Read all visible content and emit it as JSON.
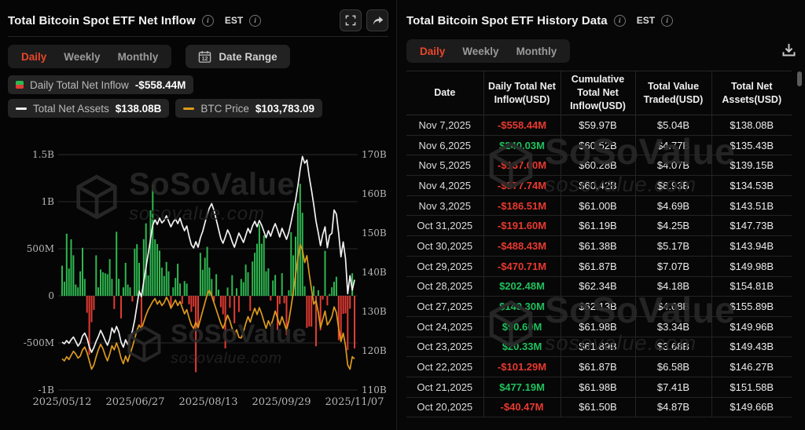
{
  "colors": {
    "green": "#2eb850",
    "red": "#e23b33",
    "assets_line": "#f2f2f2",
    "btc_line": "#dd9a1c",
    "accent": "#e8472b"
  },
  "left_panel": {
    "title": "Total Bitcoin Spot ETF Net Inflow",
    "est_label": "EST",
    "tabs": [
      "Daily",
      "Weekly",
      "Monthly"
    ],
    "active_tab": "Daily",
    "date_range_label": "Date Range",
    "calendar_icon_text": "12",
    "legend": [
      {
        "label": "Daily Total Net Inflow",
        "value": "-$558.44M"
      },
      {
        "label": "Total Net Assets",
        "value": "$138.08B"
      },
      {
        "label": "BTC Price",
        "value": "$103,783.09"
      }
    ],
    "watermark": {
      "brand": "SoSoValue",
      "domain": "sosovalue.com"
    }
  },
  "right_panel": {
    "title": "Total Bitcoin Spot ETF History Data",
    "est_label": "EST",
    "tabs": [
      "Daily",
      "Weekly",
      "Monthly"
    ],
    "active_tab": "Daily",
    "watermark": {
      "brand": "SoSoValue",
      "domain": "sosovalue.com"
    },
    "table": {
      "columns": [
        "Date",
        "Daily Total Net Inflow(USD)",
        "Cumulative Total Net Inflow(USD)",
        "Total Value Traded(USD)",
        "Total Net Assets(USD)"
      ],
      "rows": [
        {
          "date": "Nov 7,2025",
          "inflow": "-$558.44M",
          "sign": "neg",
          "cumulative": "$59.97B",
          "traded": "$5.04B",
          "assets": "$138.08B"
        },
        {
          "date": "Nov 6,2025",
          "inflow": "$240.03M",
          "sign": "pos",
          "cumulative": "$60.52B",
          "traded": "$4.77B",
          "assets": "$135.43B"
        },
        {
          "date": "Nov 5,2025",
          "inflow": "-$137.00M",
          "sign": "neg",
          "cumulative": "$60.28B",
          "traded": "$4.07B",
          "assets": "$139.15B"
        },
        {
          "date": "Nov 4,2025",
          "inflow": "-$577.74M",
          "sign": "neg",
          "cumulative": "$60.42B",
          "traded": "$8.93B",
          "assets": "$134.53B"
        },
        {
          "date": "Nov 3,2025",
          "inflow": "-$186.51M",
          "sign": "neg",
          "cumulative": "$61.00B",
          "traded": "$4.69B",
          "assets": "$143.51B"
        },
        {
          "date": "Oct 31,2025",
          "inflow": "-$191.60M",
          "sign": "neg",
          "cumulative": "$61.19B",
          "traded": "$4.25B",
          "assets": "$147.73B"
        },
        {
          "date": "Oct 30,2025",
          "inflow": "-$488.43M",
          "sign": "neg",
          "cumulative": "$61.38B",
          "traded": "$5.17B",
          "assets": "$143.94B"
        },
        {
          "date": "Oct 29,2025",
          "inflow": "-$470.71M",
          "sign": "neg",
          "cumulative": "$61.87B",
          "traded": "$7.07B",
          "assets": "$149.98B"
        },
        {
          "date": "Oct 28,2025",
          "inflow": "$202.48M",
          "sign": "pos",
          "cumulative": "$62.34B",
          "traded": "$4.18B",
          "assets": "$154.81B"
        },
        {
          "date": "Oct 27,2025",
          "inflow": "$149.30M",
          "sign": "pos",
          "cumulative": "$62.13B",
          "traded": "$4.08B",
          "assets": "$155.89B"
        },
        {
          "date": "Oct 24,2025",
          "inflow": "$90.60M",
          "sign": "pos",
          "cumulative": "$61.98B",
          "traded": "$3.34B",
          "assets": "$149.96B"
        },
        {
          "date": "Oct 23,2025",
          "inflow": "$20.33M",
          "sign": "pos",
          "cumulative": "$61.89B",
          "traded": "$3.68B",
          "assets": "$149.43B"
        },
        {
          "date": "Oct 22,2025",
          "inflow": "-$101.29M",
          "sign": "neg",
          "cumulative": "$61.87B",
          "traded": "$6.58B",
          "assets": "$146.27B"
        },
        {
          "date": "Oct 21,2025",
          "inflow": "$477.19M",
          "sign": "pos",
          "cumulative": "$61.98B",
          "traded": "$7.41B",
          "assets": "$151.58B"
        },
        {
          "date": "Oct 20,2025",
          "inflow": "-$40.47M",
          "sign": "neg",
          "cumulative": "$61.50B",
          "traded": "$4.87B",
          "assets": "$149.66B"
        }
      ]
    }
  },
  "chart_data": {
    "type": "bar+line combo",
    "title": "Total Bitcoin Spot ETF Net Inflow (Daily)",
    "x_ticks": [
      "2025/05/12",
      "2025/06/27",
      "2025/08/13",
      "2025/09/29",
      "2025/11/07"
    ],
    "y_left_ticks": [
      "1.5B",
      "1B",
      "500M",
      "0",
      "-500M",
      "-1B"
    ],
    "y_left_range_musd": [
      -1000,
      1500
    ],
    "y_right_ticks": [
      "170B",
      "160B",
      "150B",
      "140B",
      "130B",
      "120B",
      "110B"
    ],
    "y_right_range_busd": [
      110,
      170
    ],
    "btc_display_range_kusd": [
      96,
      130
    ],
    "grid": true,
    "legend_position": "top",
    "series": {
      "inflow_musd": {
        "name": "Daily Total Net Inflow",
        "axis": "left",
        "style": "bars",
        "values": [
          320,
          150,
          660,
          290,
          600,
          430,
          120,
          90,
          260,
          510,
          180,
          -180,
          -625,
          -280,
          -150,
          430,
          90,
          280,
          250,
          240,
          230,
          390,
          180,
          -140,
          680,
          180,
          -240,
          90,
          350,
          120,
          90,
          -60,
          501,
          548,
          350,
          -342,
          602,
          770,
          217,
          908,
          1180,
          600,
          550,
          480,
          300,
          210,
          360,
          260,
          -130,
          90,
          190,
          340,
          131,
          -85,
          157,
          130,
          -90,
          -170,
          -115,
          -812,
          -324,
          457,
          277,
          404,
          520,
          300,
          178,
          -58,
          230,
          65,
          -121,
          -197,
          -558,
          88,
          -127,
          219,
          -291,
          81,
          -172,
          179,
          145,
          332,
          250,
          -160,
          364,
          458,
          553,
          757,
          553,
          642,
          260,
          292,
          -51,
          163,
          222,
          -363,
          -88,
          241,
          -79,
          -418,
          59,
          676,
          430,
          628,
          985,
          1190,
          882,
          102,
          -340,
          -326,
          -327,
          103,
          -536,
          60,
          -366,
          -40.47,
          477.19,
          -101.29,
          20.33,
          90.6,
          149.3,
          202.48,
          -470.71,
          -488.43,
          -191.6,
          -186.51,
          -577.74,
          -137,
          240.03,
          -558.44
        ]
      },
      "assets_busd": {
        "name": "Total Net Assets",
        "axis": "right",
        "style": "line",
        "values": [
          122.2,
          121.8,
          122.6,
          121.9,
          122.8,
          123.5,
          122.4,
          121.2,
          122.0,
          123.8,
          124.5,
          123.2,
          121.0,
          119.6,
          120.8,
          122.4,
          123.6,
          125.2,
          124.0,
          122.6,
          121.4,
          123.0,
          125.8,
          124.6,
          126.2,
          124.8,
          122.2,
          120.9,
          122.8,
          121.6,
          123.4,
          125.0,
          127.8,
          131.5,
          135.2,
          133.8,
          137.6,
          141.2,
          144.8,
          148.5,
          152.0,
          153.4,
          152.2,
          153.8,
          152.6,
          153.2,
          154.4,
          153.0,
          151.6,
          152.8,
          153.6,
          152.4,
          153.8,
          152.0,
          150.6,
          151.8,
          149.2,
          147.0,
          146.2,
          147.8,
          146.4,
          148.8,
          150.4,
          152.6,
          154.8,
          156.4,
          157.5,
          155.8,
          153.4,
          151.0,
          148.6,
          147.4,
          149.0,
          150.8,
          149.6,
          147.8,
          146.4,
          148.2,
          150.0,
          148.8,
          147.6,
          149.4,
          151.2,
          150.0,
          151.8,
          153.0,
          151.6,
          153.2,
          152.0,
          150.4,
          148.8,
          150.6,
          149.2,
          151.0,
          152.4,
          150.8,
          149.0,
          151.2,
          149.8,
          148.4,
          150.2,
          152.8,
          155.6,
          158.4,
          162.0,
          166.2,
          169.5,
          167.8,
          168.6,
          164.4,
          161.0,
          157.2,
          153.0,
          150.0,
          146.8,
          149.66,
          151.58,
          146.27,
          149.43,
          149.96,
          155.89,
          154.81,
          149.98,
          143.94,
          147.73,
          143.51,
          134.53,
          139.15,
          135.43,
          138.08
        ]
      },
      "btc_kusd": {
        "name": "BTC Price",
        "axis": "hidden",
        "style": "line",
        "values": [
          100.5,
          100.2,
          100.8,
          100.4,
          101.0,
          101.6,
          101.2,
          100.6,
          100.9,
          101.8,
          102.2,
          101.4,
          100.2,
          99.0,
          99.6,
          100.8,
          101.8,
          102.6,
          102.0,
          101.0,
          100.2,
          101.2,
          102.4,
          101.8,
          102.8,
          101.9,
          100.6,
          99.8,
          100.9,
          100.1,
          101.2,
          102.2,
          103.4,
          104.6,
          105.4,
          104.8,
          105.8,
          106.8,
          107.6,
          108.2,
          108.8,
          109.2,
          108.4,
          108.9,
          108.2,
          108.6,
          109.4,
          108.8,
          107.8,
          108.4,
          109.0,
          108.2,
          108.8,
          107.9,
          107.0,
          107.6,
          106.4,
          105.4,
          104.9,
          105.8,
          105.0,
          106.2,
          107.4,
          108.6,
          109.8,
          110.4,
          109.6,
          108.6,
          107.6,
          106.6,
          105.6,
          104.9,
          105.8,
          106.8,
          106.0,
          104.9,
          104.0,
          104.7,
          103.6,
          103.5,
          104.4,
          105.6,
          106.6,
          105.8,
          106.9,
          107.8,
          106.9,
          107.9,
          107.0,
          105.9,
          104.9,
          106.0,
          105.2,
          106.2,
          107.4,
          106.4,
          105.4,
          106.6,
          105.6,
          104.6,
          106.0,
          108.0,
          110.2,
          112.6,
          115.0,
          117.0,
          116.2,
          114.4,
          115.4,
          112.8,
          110.6,
          108.4,
          108.9,
          107.2,
          105.0,
          106.2,
          107.4,
          105.4,
          105.9,
          106.6,
          108.0,
          107.2,
          104.9,
          103.0,
          104.2,
          102.4,
          99.6,
          99.0,
          100.8,
          100.5
        ]
      }
    }
  }
}
